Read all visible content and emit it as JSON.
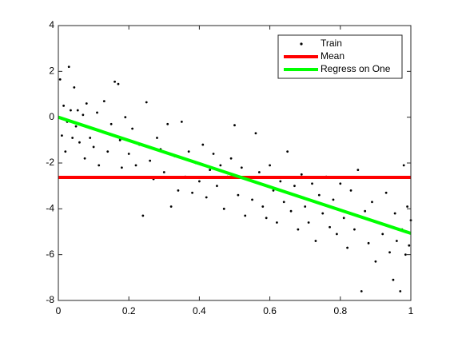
{
  "chart_data": {
    "type": "scatter",
    "xlim": [
      0,
      1
    ],
    "xticks": [
      0,
      0.2,
      0.4,
      0.6,
      0.8,
      1
    ],
    "ylim": [
      -8,
      4
    ],
    "yticks": [
      -8,
      -6,
      -4,
      -2,
      0,
      2,
      4
    ],
    "grid": false,
    "legend": "top-right",
    "series": [
      {
        "name": "Train",
        "type": "scatter",
        "color": "#000000",
        "x": [
          0.005,
          0.01,
          0.015,
          0.02,
          0.025,
          0.03,
          0.035,
          0.04,
          0.045,
          0.05,
          0.055,
          0.06,
          0.07,
          0.075,
          0.08,
          0.09,
          0.1,
          0.11,
          0.115,
          0.12,
          0.13,
          0.14,
          0.15,
          0.16,
          0.17,
          0.175,
          0.18,
          0.19,
          0.2,
          0.21,
          0.22,
          0.23,
          0.24,
          0.25,
          0.26,
          0.27,
          0.28,
          0.29,
          0.3,
          0.31,
          0.32,
          0.33,
          0.34,
          0.35,
          0.36,
          0.37,
          0.38,
          0.39,
          0.4,
          0.41,
          0.42,
          0.43,
          0.44,
          0.45,
          0.46,
          0.47,
          0.48,
          0.49,
          0.5,
          0.51,
          0.52,
          0.53,
          0.54,
          0.55,
          0.56,
          0.57,
          0.58,
          0.59,
          0.6,
          0.61,
          0.62,
          0.63,
          0.64,
          0.65,
          0.66,
          0.67,
          0.68,
          0.69,
          0.7,
          0.71,
          0.72,
          0.73,
          0.74,
          0.75,
          0.76,
          0.77,
          0.78,
          0.79,
          0.8,
          0.81,
          0.82,
          0.83,
          0.84,
          0.85,
          0.86,
          0.87,
          0.88,
          0.89,
          0.9,
          0.91,
          0.92,
          0.93,
          0.94,
          0.95,
          0.955,
          0.96,
          0.97,
          0.975,
          0.98,
          0.985,
          0.99,
          0.995,
          1.0
        ],
        "values": [
          1.65,
          -0.8,
          0.5,
          -1.5,
          -0.2,
          2.2,
          0.3,
          -0.9,
          1.3,
          -0.4,
          0.3,
          -1.1,
          0.1,
          -1.8,
          0.6,
          -0.9,
          -1.3,
          0.2,
          -2.1,
          -0.6,
          0.7,
          -1.5,
          -0.3,
          1.55,
          1.45,
          -1.0,
          -2.2,
          0.0,
          -1.6,
          -0.5,
          -2.1,
          -1.2,
          -4.3,
          0.65,
          -1.9,
          -2.7,
          -0.9,
          -1.4,
          -2.4,
          -0.3,
          -3.9,
          -1.7,
          -3.2,
          -0.2,
          -2.6,
          -1.5,
          -3.3,
          -2.0,
          -2.8,
          -1.2,
          -3.5,
          -2.3,
          -1.6,
          -3.0,
          -2.1,
          -4.0,
          -2.6,
          -1.8,
          -0.35,
          -3.4,
          -2.2,
          -4.3,
          -2.7,
          -3.6,
          -0.7,
          -2.4,
          -3.9,
          -4.4,
          -2.1,
          -3.2,
          -4.6,
          -2.8,
          -3.7,
          -1.5,
          -4.1,
          -3.0,
          -4.9,
          -2.5,
          -3.9,
          -4.6,
          -2.9,
          -5.4,
          -3.4,
          -4.2,
          -2.6,
          -4.8,
          -3.6,
          -5.1,
          -2.9,
          -4.4,
          -5.7,
          -3.2,
          -4.9,
          -2.3,
          -7.6,
          -4.1,
          -5.5,
          -3.7,
          -6.3,
          -4.6,
          -5.1,
          -3.3,
          -5.9,
          -7.1,
          -4.2,
          -5.4,
          -7.6,
          -4.9,
          -2.1,
          -6.0,
          -3.9,
          -5.6,
          -4.5
        ]
      },
      {
        "name": "Mean",
        "type": "line",
        "color": "#ff0000",
        "x": [
          0,
          1
        ],
        "values": [
          -2.63,
          -2.63
        ]
      },
      {
        "name": "Regress on One",
        "type": "line",
        "color": "#00ff00",
        "x": [
          0,
          1
        ],
        "values": [
          0,
          -5.07
        ]
      }
    ]
  }
}
